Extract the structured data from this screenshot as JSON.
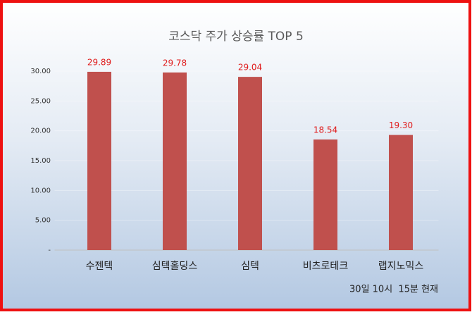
{
  "chart_data": {
    "type": "bar",
    "title": "코스닥 주가 상승률 TOP 5",
    "categories": [
      "수젠텍",
      "심텍홀딩스",
      "심텍",
      "비츠로테크",
      "랩지노믹스"
    ],
    "values": [
      29.89,
      29.78,
      29.04,
      18.54,
      19.3
    ],
    "value_labels": [
      "29.89",
      "29.78",
      "29.04",
      "18.54",
      "19.30"
    ],
    "color": "#c0504d",
    "ylim": [
      0,
      30
    ],
    "yticks": [
      {
        "value": 0,
        "label": "-"
      },
      {
        "value": 5,
        "label": "5.00"
      },
      {
        "value": 10,
        "label": "10.00"
      },
      {
        "value": 15,
        "label": "15.00"
      },
      {
        "value": 20,
        "label": "20.00"
      },
      {
        "value": 25,
        "label": "25.00"
      },
      {
        "value": 30,
        "label": "30.00"
      }
    ],
    "grid": true,
    "note": "30일 10시  15분 현재"
  }
}
